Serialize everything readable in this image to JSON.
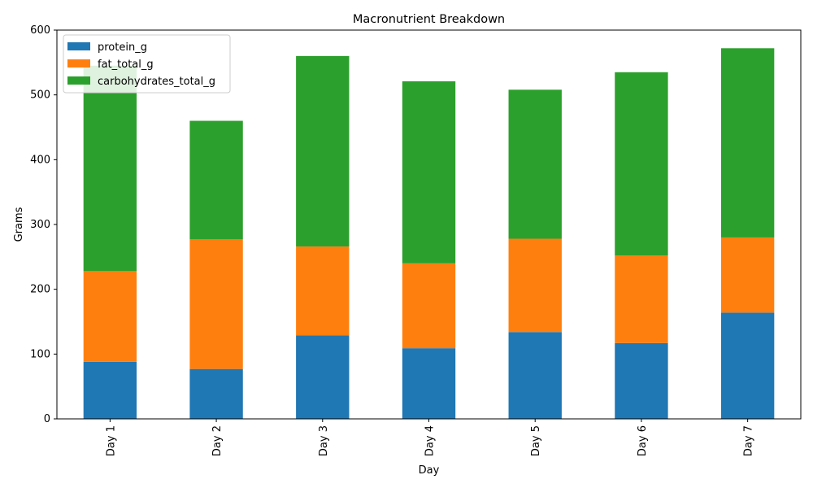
{
  "chart_data": {
    "type": "bar",
    "stacked": true,
    "title": "Macronutrient Breakdown",
    "xlabel": "Day",
    "ylabel": "Grams",
    "categories": [
      "Day 1",
      "Day 2",
      "Day 3",
      "Day 4",
      "Day 5",
      "Day 6",
      "Day 7"
    ],
    "ylim": [
      0,
      600
    ],
    "yticks": [
      0,
      100,
      200,
      300,
      400,
      500,
      600
    ],
    "grid": false,
    "legend_position": "top-left",
    "series": [
      {
        "name": "protein_g",
        "color": "#1f77b4",
        "values": [
          88,
          77,
          129,
          109,
          134,
          117,
          164
        ]
      },
      {
        "name": "fat_total_g",
        "color": "#ff7f0e",
        "values": [
          140,
          200,
          137,
          131,
          144,
          135,
          116
        ]
      },
      {
        "name": "carbohydrates_total_g",
        "color": "#2ca02c",
        "values": [
          317,
          183,
          294,
          281,
          230,
          283,
          292
        ]
      }
    ]
  }
}
